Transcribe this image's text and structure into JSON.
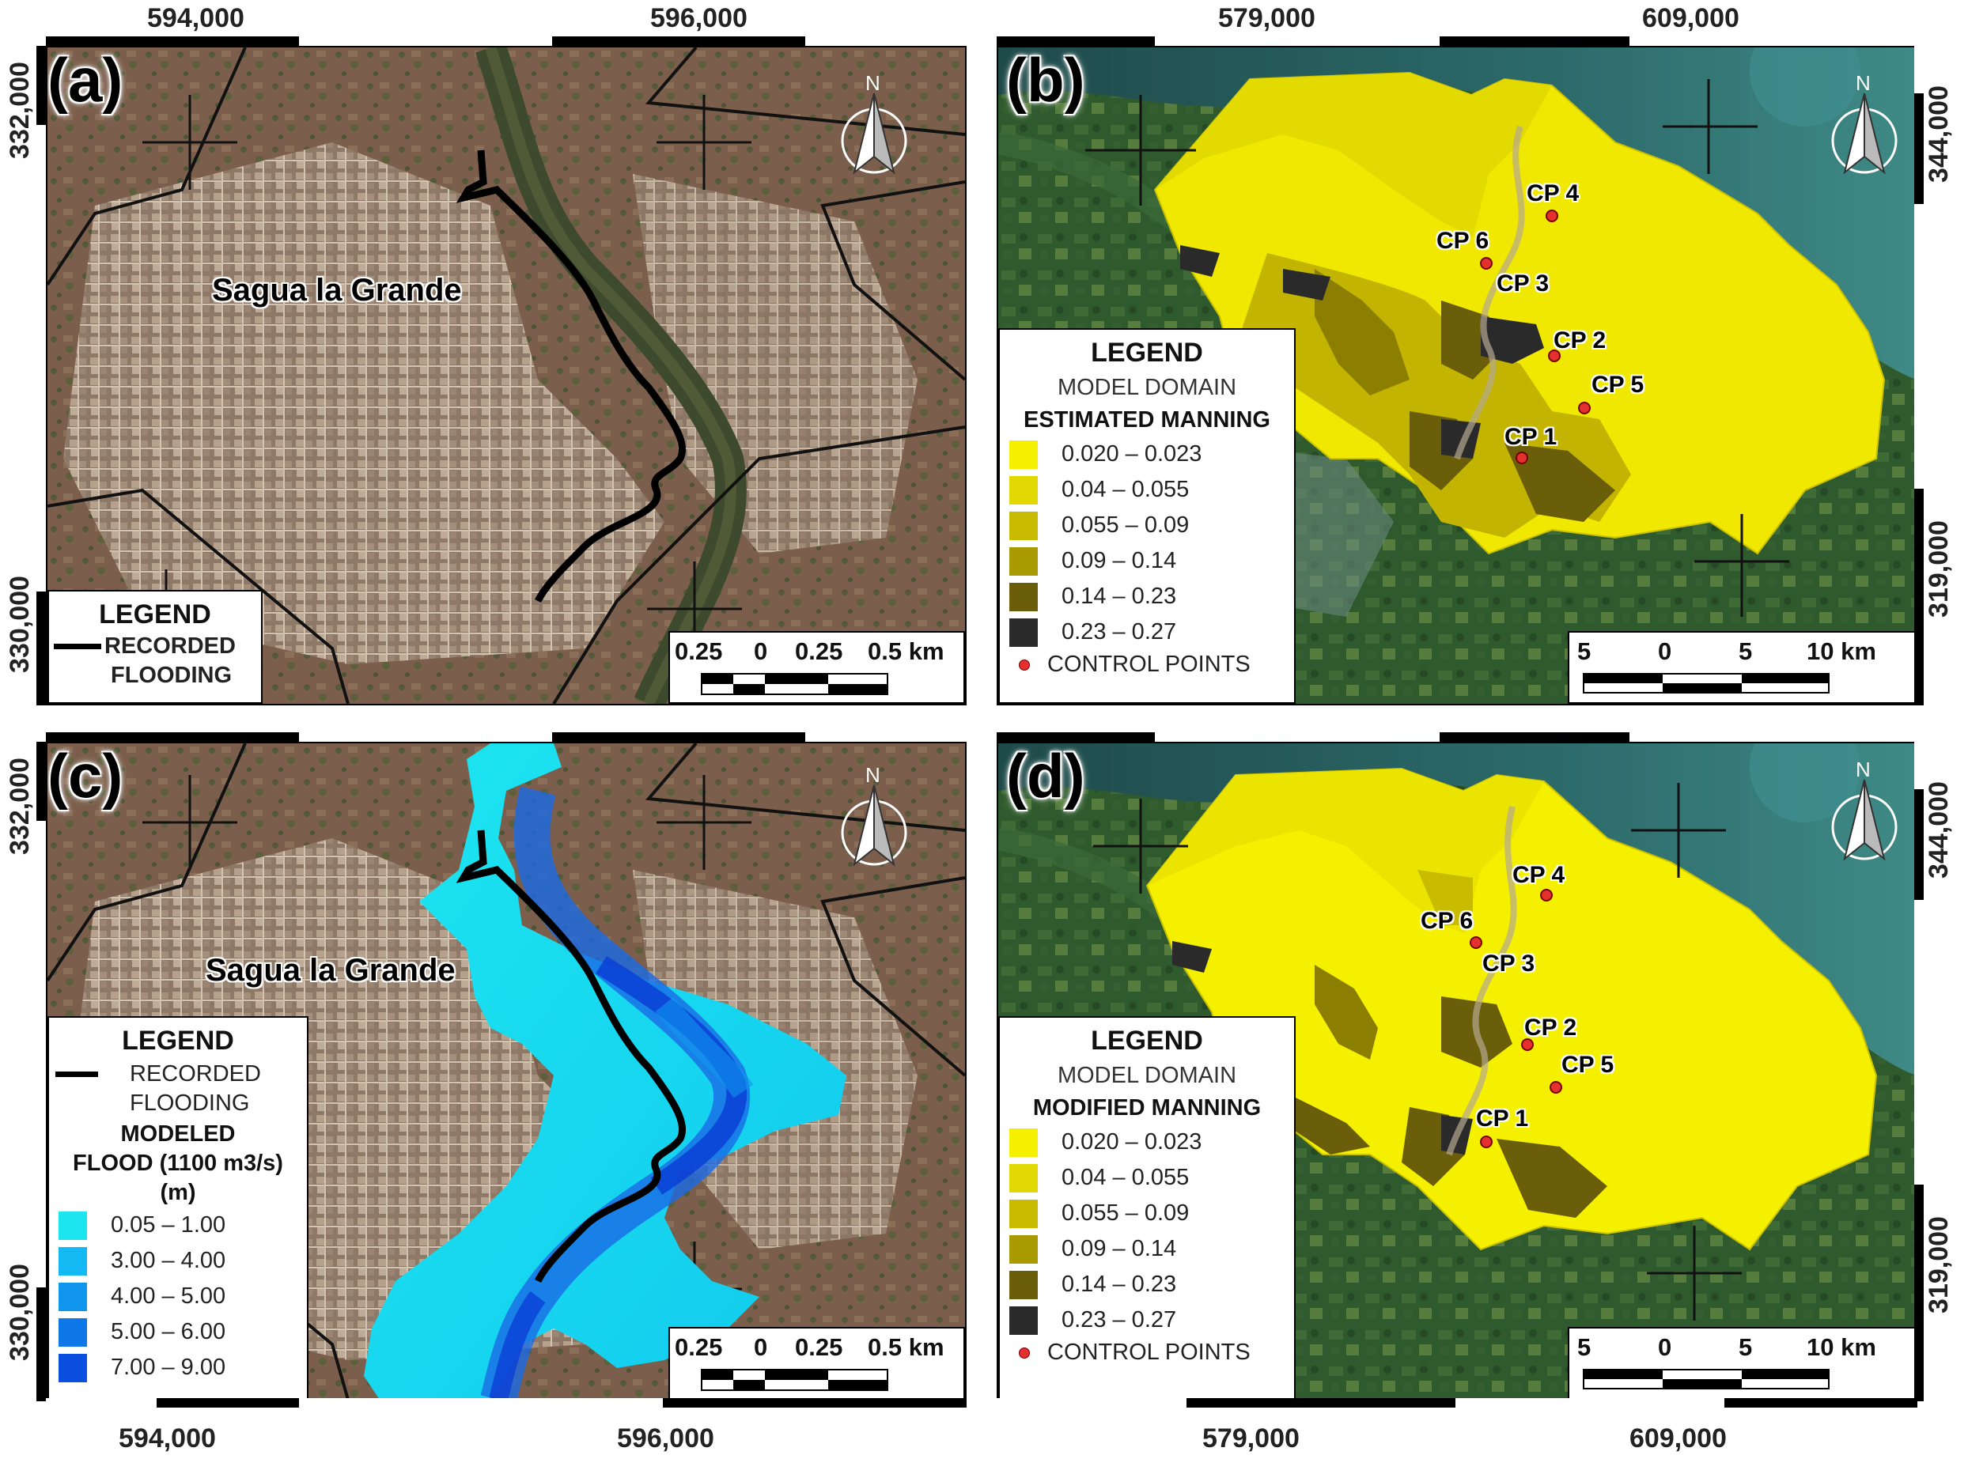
{
  "panels": {
    "a": {
      "label": "(a)",
      "top_coords": [
        "594,000",
        "596,000"
      ],
      "left_coords": [
        "332,000",
        "330,000"
      ],
      "place": "Sagua la Grande",
      "north": "N",
      "legend": {
        "title": "LEGEND",
        "line_label_1": "RECORDED",
        "line_label_2": "FLOODING"
      },
      "scale": {
        "labels": [
          "0.25",
          "0",
          "0.25",
          "0.5 km"
        ]
      }
    },
    "b": {
      "label": "(b)",
      "top_coords": [
        "579,000",
        "609,000"
      ],
      "right_coords": [
        "344,000",
        "319,000"
      ],
      "north": "N",
      "control_points": [
        "CP 4",
        "CP 6",
        "CP 3",
        "CP 2",
        "CP 5",
        "CP 1"
      ],
      "legend": {
        "title": "LEGEND",
        "subtitle": "MODEL DOMAIN",
        "heading": "ESTIMATED MANNING",
        "classes": [
          "0.020 – 0.023",
          "0.04 – 0.055",
          "0.055 – 0.09",
          "0.09 – 0.14",
          "0.14 – 0.23",
          "0.23 – 0.27"
        ],
        "colors": [
          "#f4f000",
          "#e0d800",
          "#c9bc00",
          "#a89a00",
          "#6b5e0a",
          "#2a2a2a"
        ],
        "points_label": "CONTROL POINTS"
      },
      "scale": {
        "labels": [
          "5",
          "0",
          "5",
          "10 km"
        ]
      }
    },
    "c": {
      "label": "(c)",
      "left_coords": [
        "332,000",
        "330,000"
      ],
      "bottom_coords": [
        "594,000",
        "596,000"
      ],
      "place": "Sagua la Grande",
      "north": "N",
      "legend": {
        "title": "LEGEND",
        "line_label_1": "RECORDED",
        "line_label_2": "FLOODING",
        "heading_1": "MODELED",
        "heading_2": "FLOOD (1100 m3/s)",
        "heading_3": "(m)",
        "classes": [
          "0.05 – 1.00",
          "3.00 – 4.00",
          "4.00 – 5.00",
          "5.00 – 6.00",
          "7.00 – 9.00"
        ],
        "colors": [
          "#1de6f0",
          "#14b8f2",
          "#1196ee",
          "#0f78e8",
          "#0a4fe0"
        ]
      },
      "scale": {
        "labels": [
          "0.25",
          "0",
          "0.25",
          "0.5 km"
        ]
      }
    },
    "d": {
      "label": "(d)",
      "right_coords": [
        "344,000",
        "319,000"
      ],
      "bottom_coords": [
        "579,000",
        "609,000"
      ],
      "north": "N",
      "control_points": [
        "CP 4",
        "CP 6",
        "CP 3",
        "CP 2",
        "CP 5",
        "CP 1"
      ],
      "legend": {
        "title": "LEGEND",
        "subtitle": "MODEL DOMAIN",
        "heading": "MODIFIED MANNING",
        "classes": [
          "0.020 – 0.023",
          "0.04 – 0.055",
          "0.055 – 0.09",
          "0.09 – 0.14",
          "0.14 – 0.23",
          "0.23 – 0.27"
        ],
        "colors": [
          "#f4f000",
          "#e0d800",
          "#c9bc00",
          "#a89a00",
          "#6b5e0a",
          "#2a2a2a"
        ],
        "points_label": "CONTROL POINTS"
      },
      "scale": {
        "labels": [
          "5",
          "0",
          "5",
          "10 km"
        ]
      }
    }
  }
}
